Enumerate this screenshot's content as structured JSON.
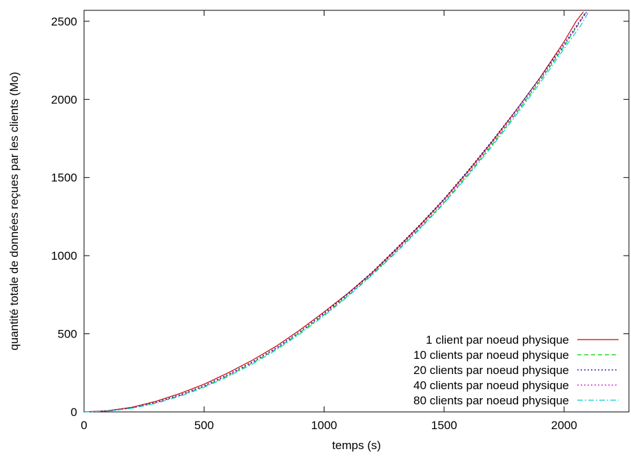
{
  "chart_data": {
    "type": "line",
    "xlabel": "temps (s)",
    "ylabel": "quantité totale de données reçues par les clients (Mo)",
    "xlim": [
      0,
      2270
    ],
    "ylim": [
      0,
      2570
    ],
    "xticks": [
      0,
      500,
      1000,
      1500,
      2000
    ],
    "yticks": [
      0,
      500,
      1000,
      1500,
      2000,
      2500
    ],
    "grid": false,
    "legend_position": "bottom-right",
    "series": [
      {
        "name": "1 client par noeud physique",
        "color": "#cc0000",
        "dash": "solid",
        "x": [
          0,
          100,
          200,
          300,
          400,
          500,
          600,
          700,
          800,
          900,
          1000,
          1100,
          1200,
          1300,
          1400,
          1500,
          1600,
          1700,
          1800,
          1900,
          2000,
          2050,
          2080
        ],
        "y": [
          0,
          8,
          30,
          68,
          118,
          177,
          250,
          330,
          420,
          525,
          640,
          760,
          890,
          1040,
          1195,
          1360,
          1540,
          1730,
          1930,
          2140,
          2370,
          2500,
          2560
        ]
      },
      {
        "name": "10 clients par noeud physique",
        "color": "#00cc00",
        "dash": "dashed",
        "x": [
          0,
          100,
          200,
          300,
          400,
          500,
          600,
          700,
          800,
          900,
          1000,
          1100,
          1200,
          1300,
          1400,
          1500,
          1600,
          1700,
          1800,
          1900,
          2000,
          2060,
          2090
        ],
        "y": [
          0,
          6,
          25,
          58,
          105,
          162,
          232,
          312,
          402,
          508,
          622,
          745,
          880,
          1025,
          1178,
          1340,
          1520,
          1710,
          1910,
          2120,
          2340,
          2480,
          2555
        ]
      },
      {
        "name": "20 clients par noeud physique",
        "color": "#000099",
        "dash": "dotted",
        "x": [
          0,
          100,
          200,
          300,
          400,
          500,
          600,
          700,
          800,
          900,
          1000,
          1100,
          1200,
          1300,
          1400,
          1500,
          1600,
          1700,
          1800,
          1900,
          2000,
          2060,
          2090
        ],
        "y": [
          0,
          7,
          27,
          62,
          110,
          168,
          240,
          320,
          410,
          515,
          632,
          758,
          895,
          1045,
          1200,
          1365,
          1545,
          1735,
          1932,
          2138,
          2355,
          2490,
          2560
        ]
      },
      {
        "name": "40 clients par noeud physique",
        "color": "#cc00cc",
        "dash": "dotted",
        "x": [
          0,
          100,
          200,
          300,
          400,
          500,
          600,
          700,
          800,
          900,
          1000,
          1100,
          1200,
          1300,
          1400,
          1500,
          1600,
          1700,
          1800,
          1900,
          2000,
          2060,
          2095
        ],
        "y": [
          0,
          6,
          26,
          60,
          107,
          165,
          236,
          316,
          406,
          512,
          627,
          752,
          886,
          1033,
          1186,
          1350,
          1530,
          1720,
          1918,
          2125,
          2345,
          2485,
          2558
        ]
      },
      {
        "name": "80 clients par noeud physique",
        "color": "#00cccc",
        "dash": "dashdot",
        "x": [
          0,
          100,
          200,
          300,
          400,
          500,
          600,
          700,
          800,
          900,
          1000,
          1100,
          1200,
          1300,
          1400,
          1500,
          1600,
          1700,
          1800,
          1900,
          2000,
          2070,
          2100
        ],
        "y": [
          0,
          5,
          23,
          55,
          100,
          157,
          226,
          305,
          396,
          500,
          615,
          740,
          875,
          1020,
          1172,
          1335,
          1512,
          1700,
          1898,
          2105,
          2325,
          2475,
          2555
        ]
      }
    ]
  }
}
